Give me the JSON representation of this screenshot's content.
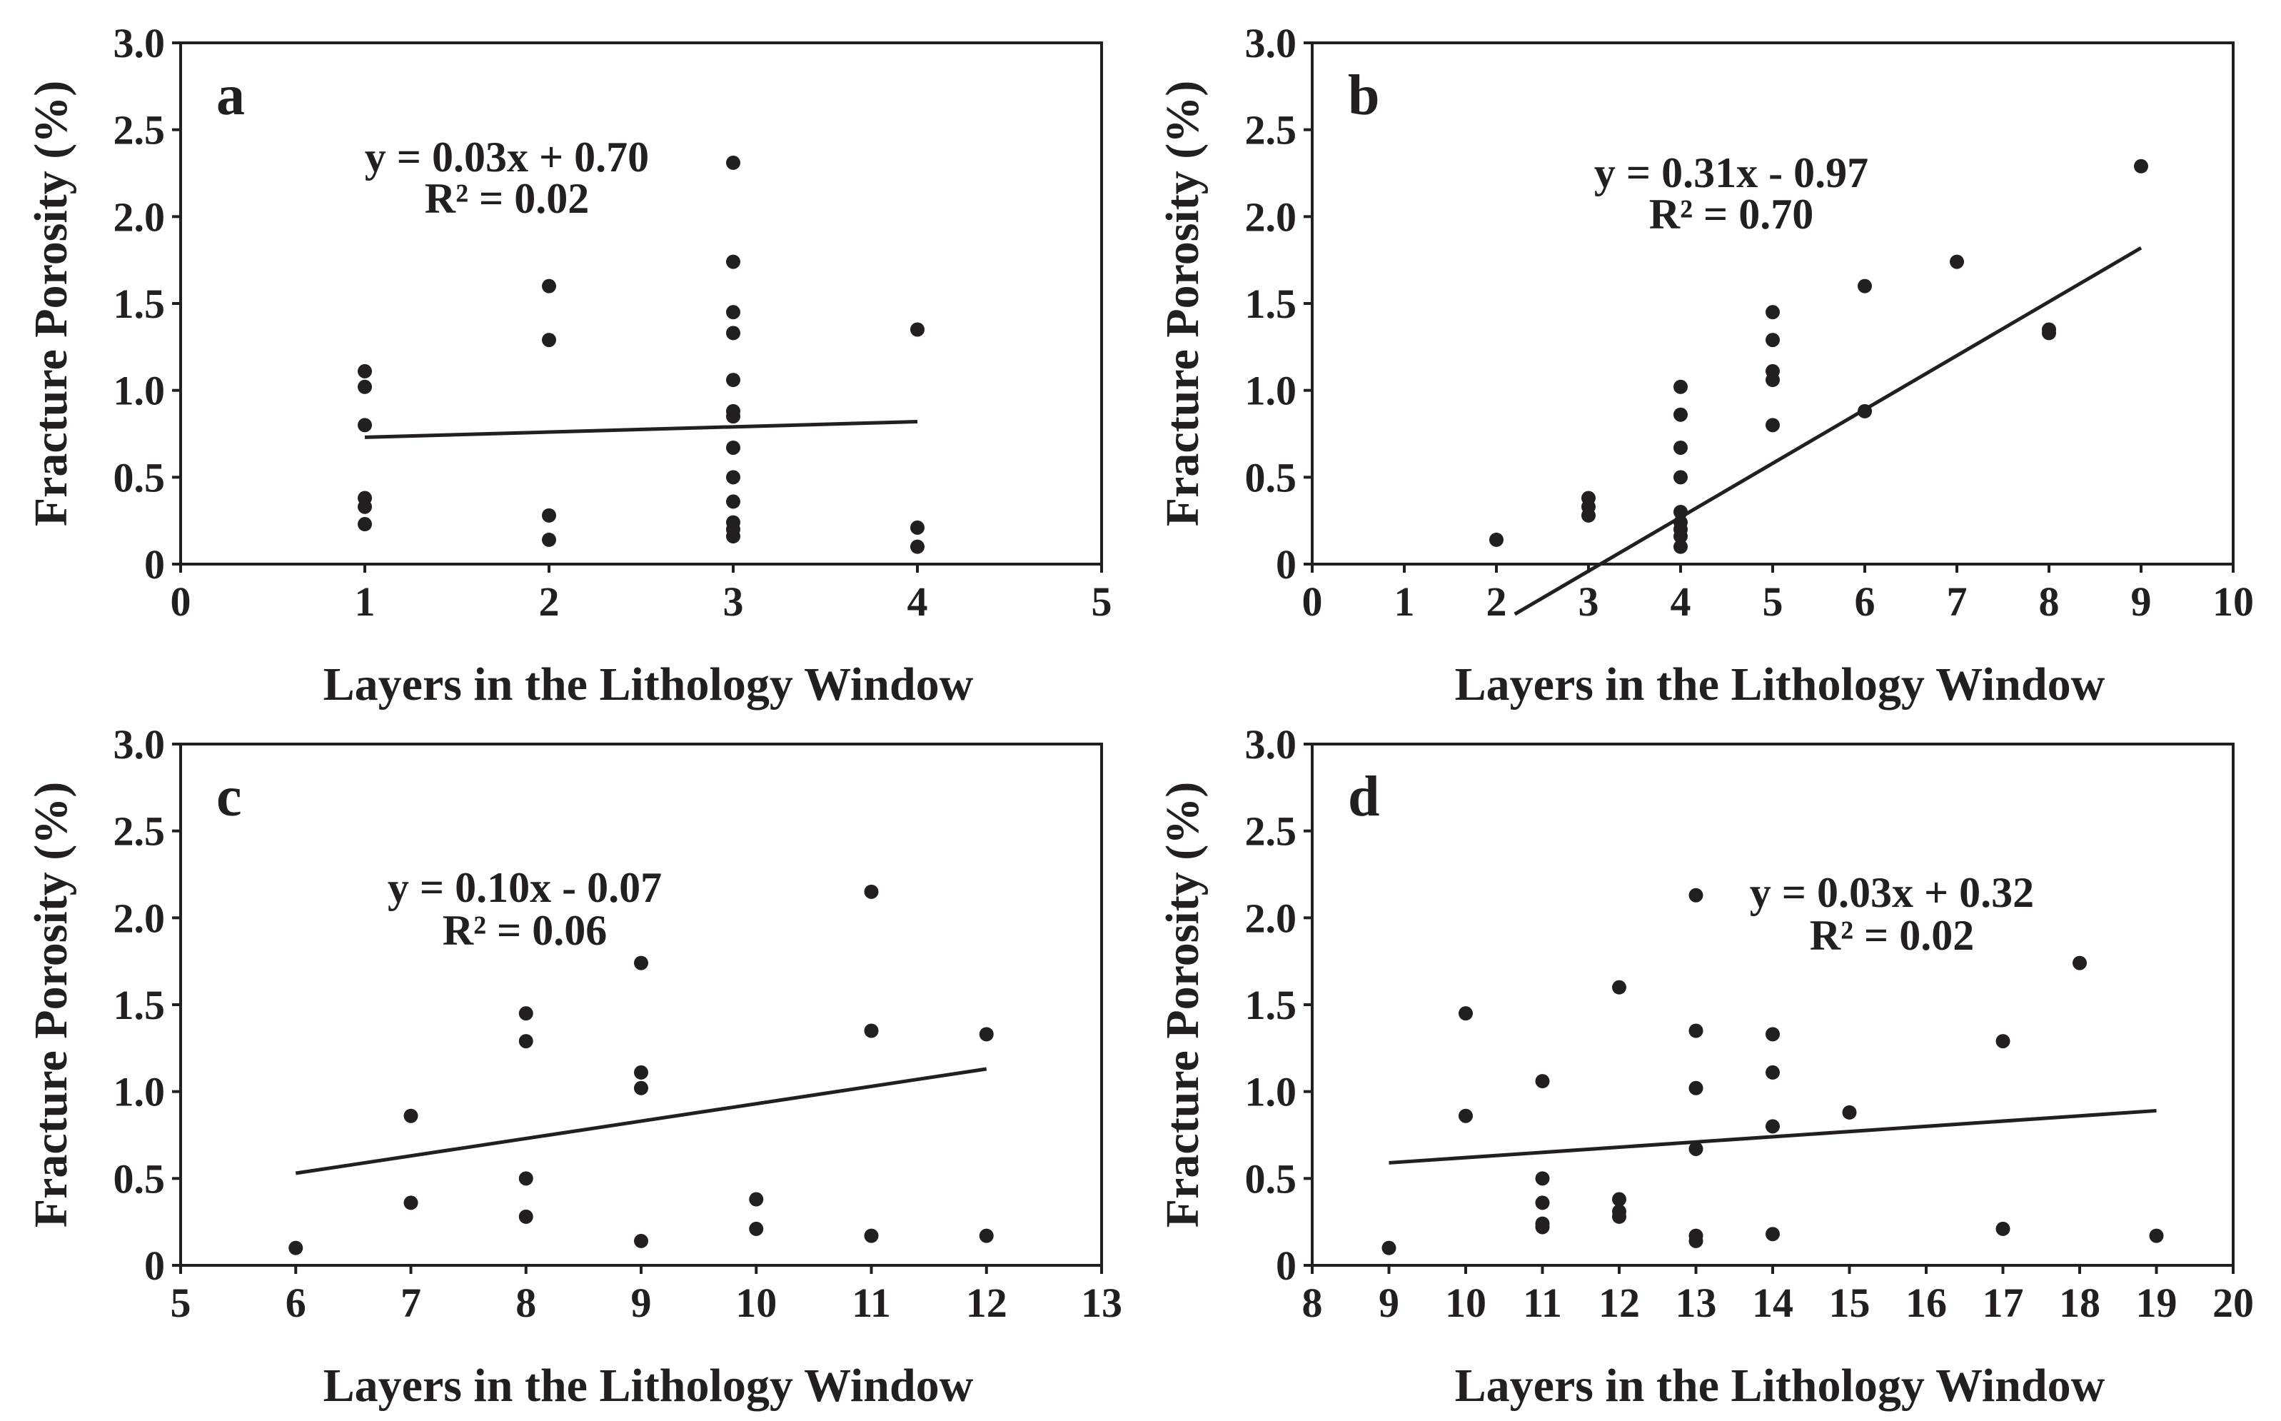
{
  "chart_data": [
    {
      "type": "scatter",
      "panel_label": "a",
      "xlabel": "Layers in the Lithology Window",
      "ylabel": "Fracture Porosity (%)",
      "xlim": [
        0,
        5
      ],
      "ylim": [
        0,
        3.0
      ],
      "xticks": [
        "0",
        "1",
        "2",
        "3",
        "4",
        "5"
      ],
      "yticks": [
        "0",
        "0.5",
        "1.0",
        "1.5",
        "2.0",
        "2.5",
        "3.0"
      ],
      "points": [
        [
          1,
          1.11
        ],
        [
          1,
          1.02
        ],
        [
          1,
          0.8
        ],
        [
          1,
          0.38
        ],
        [
          1,
          0.33
        ],
        [
          1,
          0.23
        ],
        [
          2,
          1.6
        ],
        [
          2,
          1.29
        ],
        [
          2,
          0.28
        ],
        [
          2,
          0.14
        ],
        [
          3,
          2.31
        ],
        [
          3,
          1.74
        ],
        [
          3,
          1.45
        ],
        [
          3,
          1.33
        ],
        [
          3,
          1.06
        ],
        [
          3,
          0.88
        ],
        [
          3,
          0.85
        ],
        [
          3,
          0.67
        ],
        [
          3,
          0.5
        ],
        [
          3,
          0.36
        ],
        [
          3,
          0.24
        ],
        [
          3,
          0.2
        ],
        [
          3,
          0.16
        ],
        [
          4,
          1.35
        ],
        [
          4,
          0.21
        ],
        [
          4,
          0.1
        ]
      ],
      "trendline": {
        "slope": 0.03,
        "intercept": 0.7,
        "x_range": [
          1,
          4
        ]
      },
      "equation": "y = 0.03x + 0.70",
      "r2": "R² = 0.02"
    },
    {
      "type": "scatter",
      "panel_label": "b",
      "xlabel": "Layers in the Lithology Window",
      "ylabel": "Fracture Porosity (%)",
      "xlim": [
        0,
        10
      ],
      "ylim": [
        0,
        3.0
      ],
      "xticks": [
        "0",
        "1",
        "2",
        "3",
        "4",
        "5",
        "6",
        "7",
        "8",
        "9",
        "10"
      ],
      "yticks": [
        "0",
        "0.5",
        "1.0",
        "1.5",
        "2.0",
        "2.5",
        "3.0"
      ],
      "points": [
        [
          2,
          0.14
        ],
        [
          3,
          0.38
        ],
        [
          3,
          0.33
        ],
        [
          3,
          0.28
        ],
        [
          4,
          1.02
        ],
        [
          4,
          0.86
        ],
        [
          4,
          0.67
        ],
        [
          4,
          0.5
        ],
        [
          4,
          0.3
        ],
        [
          4,
          0.24
        ],
        [
          4,
          0.2
        ],
        [
          4,
          0.16
        ],
        [
          4,
          0.1
        ],
        [
          5,
          1.45
        ],
        [
          5,
          1.29
        ],
        [
          5,
          1.11
        ],
        [
          5,
          1.06
        ],
        [
          5,
          0.8
        ],
        [
          6,
          1.6
        ],
        [
          6,
          0.88
        ],
        [
          7,
          1.74
        ],
        [
          8,
          1.35
        ],
        [
          8,
          1.33
        ],
        [
          9,
          2.29
        ]
      ],
      "trendline": {
        "slope": 0.31,
        "intercept": -0.97,
        "x_range": [
          2.2,
          9
        ]
      },
      "equation": "y = 0.31x - 0.97",
      "r2": "R² = 0.70"
    },
    {
      "type": "scatter",
      "panel_label": "c",
      "xlabel": "Layers in the Lithology Window",
      "ylabel": "Fracture Porosity (%)",
      "xlim": [
        5,
        13
      ],
      "ylim": [
        0,
        3.0
      ],
      "xticks": [
        "5",
        "6",
        "7",
        "8",
        "9",
        "10",
        "11",
        "12",
        "13"
      ],
      "yticks": [
        "0",
        "0.5",
        "1.0",
        "1.5",
        "2.0",
        "2.5",
        "3.0"
      ],
      "points": [
        [
          6,
          0.1
        ],
        [
          7,
          0.86
        ],
        [
          7,
          0.36
        ],
        [
          8,
          1.45
        ],
        [
          8,
          1.29
        ],
        [
          8,
          0.5
        ],
        [
          8,
          0.28
        ],
        [
          9,
          1.74
        ],
        [
          9,
          1.11
        ],
        [
          9,
          1.02
        ],
        [
          9,
          0.14
        ],
        [
          10,
          0.38
        ],
        [
          10,
          0.21
        ],
        [
          11,
          2.15
        ],
        [
          11,
          1.35
        ],
        [
          11,
          0.17
        ],
        [
          12,
          1.33
        ],
        [
          12,
          0.17
        ]
      ],
      "trendline": {
        "slope": 0.1,
        "intercept": -0.07,
        "x_range": [
          6,
          12
        ]
      },
      "equation": "y = 0.10x - 0.07",
      "r2": "R² = 0.06"
    },
    {
      "type": "scatter",
      "panel_label": "d",
      "xlabel": "Layers in the Lithology Window",
      "ylabel": "Fracture Porosity (%)",
      "xlim": [
        8,
        20
      ],
      "ylim": [
        0,
        3.0
      ],
      "xticks": [
        "8",
        "9",
        "10",
        "11",
        "12",
        "13",
        "14",
        "15",
        "16",
        "17",
        "18",
        "19",
        "20"
      ],
      "yticks": [
        "0",
        "0.5",
        "1.0",
        "1.5",
        "2.0",
        "2.5",
        "3.0"
      ],
      "points": [
        [
          9,
          0.1
        ],
        [
          10,
          1.45
        ],
        [
          10,
          0.86
        ],
        [
          11,
          1.06
        ],
        [
          11,
          0.5
        ],
        [
          11,
          0.36
        ],
        [
          11,
          0.24
        ],
        [
          11,
          0.22
        ],
        [
          12,
          1.6
        ],
        [
          12,
          0.38
        ],
        [
          12,
          0.31
        ],
        [
          12,
          0.28
        ],
        [
          13,
          2.13
        ],
        [
          13,
          1.35
        ],
        [
          13,
          1.02
        ],
        [
          13,
          0.67
        ],
        [
          13,
          0.17
        ],
        [
          13,
          0.14
        ],
        [
          14,
          1.33
        ],
        [
          14,
          1.11
        ],
        [
          14,
          0.8
        ],
        [
          14,
          0.18
        ],
        [
          15,
          0.88
        ],
        [
          17,
          1.29
        ],
        [
          17,
          0.21
        ],
        [
          18,
          1.74
        ],
        [
          19,
          0.17
        ]
      ],
      "trendline": {
        "slope": 0.03,
        "intercept": 0.32,
        "x_range": [
          9,
          19
        ]
      },
      "equation": "y = 0.03x + 0.32",
      "r2": "R² = 0.02"
    }
  ]
}
